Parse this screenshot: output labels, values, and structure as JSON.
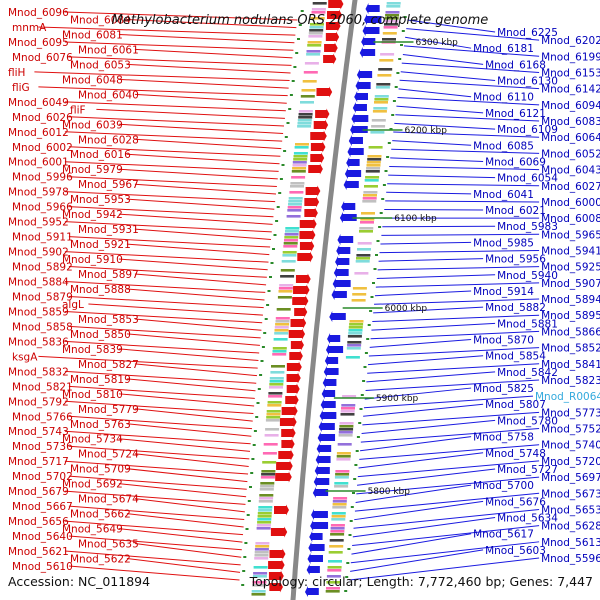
{
  "title": "Methylobacterium nodulans ORS 2060, complete genome",
  "accession": "Accession: NC_011894",
  "summary": "Topology: circular; Length: 7,772,460 bp; Genes: 7,447",
  "colors": {
    "forward": "#e01010",
    "reverse": "#1a1ae0",
    "label_left": "#cc0000",
    "label_right": "#0000bb",
    "highlight": "#33aadd",
    "backbone": "#888888"
  },
  "kbp_markers": [
    "6300 kbp",
    "6200 kbp",
    "6100 kbp",
    "6000 kbp",
    "5900 kbp",
    "5800 kbp"
  ],
  "left_labels": [
    "Mnod_6096",
    "Mnod_6084",
    "mnmA",
    "Mnod_6081",
    "Mnod_6095",
    "Mnod_6061",
    "Mnod_6076",
    "Mnod_6053",
    "fliH",
    "Mnod_6048",
    "fliG",
    "Mnod_6040",
    "Mnod_6049",
    "fliF",
    "Mnod_6026",
    "Mnod_6039",
    "Mnod_6012",
    "Mnod_6028",
    "Mnod_6002",
    "Mnod_6016",
    "Mnod_6001",
    "Mnod_5979",
    "Mnod_5996",
    "Mnod_5967",
    "Mnod_5978",
    "Mnod_5953",
    "Mnod_5966",
    "Mnod_5942",
    "Mnod_5952",
    "Mnod_5931",
    "Mnod_5911",
    "Mnod_5921",
    "Mnod_5902",
    "Mnod_5910",
    "Mnod_5892",
    "Mnod_5897",
    "Mnod_5884",
    "Mnod_5888",
    "Mnod_5879",
    "algL",
    "Mnod_5859",
    "Mnod_5853",
    "Mnod_5858",
    "Mnod_5850",
    "Mnod_5836",
    "Mnod_5839",
    "ksgA",
    "Mnod_5827",
    "Mnod_5832",
    "Mnod_5819",
    "Mnod_5821",
    "Mnod_5810",
    "Mnod_5792",
    "Mnod_5779",
    "Mnod_5766",
    "Mnod_5763",
    "Mnod_5743",
    "Mnod_5734",
    "Mnod_5736",
    "Mnod_5724",
    "Mnod_5717",
    "Mnod_5709",
    "Mnod_5702",
    "Mnod_5692",
    "Mnod_5679",
    "Mnod_5674",
    "Mnod_5667",
    "Mnod_5662",
    "Mnod_5656",
    "Mnod_5649",
    "Mnod_5640",
    "Mnod_5635",
    "Mnod_5621",
    "Mnod_5622",
    "Mnod_5610"
  ],
  "right_labels": [
    "Mnod_6225",
    "Mnod_6202",
    "Mnod_6181",
    "Mnod_6199",
    "Mnod_6168",
    "Mnod_6153",
    "Mnod_6130",
    "Mnod_6142",
    "Mnod_6110",
    "Mnod_6094",
    "Mnod_6121",
    "Mnod_6083",
    "Mnod_6109",
    "Mnod_6064",
    "Mnod_6085",
    "Mnod_6052",
    "Mnod_6069",
    "Mnod_6043",
    "Mnod_6054",
    "Mnod_6027",
    "Mnod_6041",
    "Mnod_6000",
    "Mnod_6021",
    "Mnod_6008",
    "Mnod_5983",
    "Mnod_5965",
    "Mnod_5985",
    "Mnod_5941",
    "Mnod_5956",
    "Mnod_5925",
    "Mnod_5940",
    "Mnod_5907",
    "Mnod_5914",
    "Mnod_5894",
    "Mnod_5882",
    "Mnod_5895",
    "Mnod_5881",
    "Mnod_5866",
    "Mnod_5870",
    "Mnod_5852",
    "Mnod_5854",
    "Mnod_5841",
    "Mnod_5842",
    "Mnod_5823",
    "Mnod_5825",
    "Mnod_R0064",
    "Mnod_5807",
    "Mnod_5773",
    "Mnod_5780",
    "Mnod_5752",
    "Mnod_5758",
    "Mnod_5740",
    "Mnod_5748",
    "Mnod_5720",
    "Mnod_5727",
    "Mnod_5697",
    "Mnod_5700",
    "Mnod_5673",
    "Mnod_5676",
    "Mnod_5653",
    "Mnod_5634",
    "Mnod_5628",
    "Mnod_5617",
    "Mnod_5613",
    "Mnod_5603",
    "Mnod_5596"
  ]
}
